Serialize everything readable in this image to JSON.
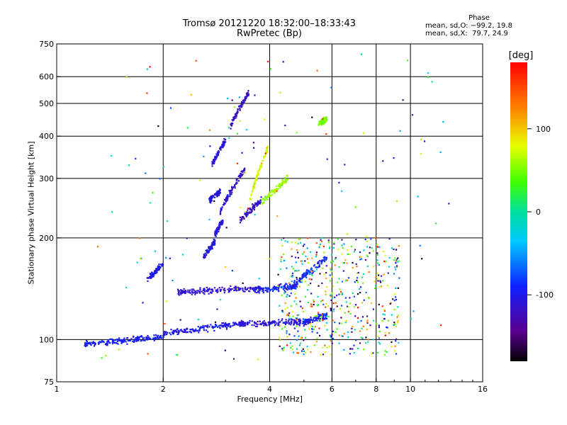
{
  "chart_data": {
    "type": "scatter",
    "title": "Tromsø 20121220 18:32:00–18:33:43",
    "subtitle": "RwPretec (Bp)",
    "xlabel": "Frequency [MHz]",
    "ylabel": "Stationary phase Virtual Height [km]",
    "x_scale": "log",
    "y_scale": "log",
    "xlim": [
      1,
      16
    ],
    "ylim": [
      75,
      750
    ],
    "x_ticks": [
      1,
      2,
      4,
      6,
      8,
      10,
      16
    ],
    "x_grid": [
      2,
      4,
      6,
      8,
      10
    ],
    "y_ticks": [
      75,
      100,
      200,
      300,
      400,
      500,
      600,
      750
    ],
    "y_grid": [
      100,
      200,
      300,
      400,
      500,
      600
    ],
    "grid": true,
    "colorbar": {
      "label": "[deg]",
      "ticks": [
        100,
        0,
        -100
      ],
      "range": [
        -180,
        180
      ]
    },
    "phase_stats": {
      "heading": "Phase",
      "line_o": "mean, sd,O: −99.2, 19.8",
      "line_x": "mean, sd,X:  79.7, 24.9"
    },
    "series": [
      {
        "traces": [
          {
            "f": [
              1.2,
              2.0
            ],
            "h": [
              97,
              102
            ],
            "ph": -105,
            "sd": 10
          },
          {
            "f": [
              2.0,
              3.4
            ],
            "h": [
              104,
              112
            ],
            "ph": -110,
            "sd": 12
          },
          {
            "f": [
              3.2,
              5.2
            ],
            "h": [
              111,
              113
            ],
            "ph": -118,
            "sd": 16
          },
          {
            "f": [
              5.0,
              5.8
            ],
            "h": [
              113,
              118
            ],
            "ph": -105,
            "sd": 18
          },
          {
            "f": [
              2.2,
              3.8
            ],
            "h": [
              138,
              142
            ],
            "ph": -120,
            "sd": 12
          },
          {
            "f": [
              3.6,
              4.8
            ],
            "h": [
              140,
              144
            ],
            "ph": -100,
            "sd": 20
          },
          {
            "f": [
              4.6,
              5.8
            ],
            "h": [
              143,
              175
            ],
            "ph": -95,
            "sd": 22
          },
          {
            "f": [
              1.8,
              2.0
            ],
            "h": [
              150,
              167
            ],
            "ph": -110,
            "sd": 8
          },
          {
            "f": [
              2.6,
              2.8
            ],
            "h": [
              175,
              195
            ],
            "ph": -115,
            "sd": 10
          },
          {
            "f": [
              2.8,
              2.95
            ],
            "h": [
              205,
              225
            ],
            "ph": -115,
            "sd": 10
          },
          {
            "f": [
              2.7,
              2.9
            ],
            "h": [
              258,
              275
            ],
            "ph": -115,
            "sd": 12
          },
          {
            "f": [
              2.75,
              3.0
            ],
            "h": [
              330,
              390
            ],
            "ph": -118,
            "sd": 12
          },
          {
            "f": [
              2.9,
              3.4
            ],
            "h": [
              240,
              320
            ],
            "ph": -122,
            "sd": 16
          },
          {
            "f": [
              3.3,
              3.8
            ],
            "h": [
              225,
              260
            ],
            "ph": -125,
            "sd": 12
          },
          {
            "f": [
              3.1,
              3.5
            ],
            "h": [
              430,
              540
            ],
            "ph": -125,
            "sd": 12
          },
          {
            "f": [
              3.5,
              3.95
            ],
            "h": [
              255,
              370
            ],
            "ph": 95,
            "sd": 22
          },
          {
            "f": [
              3.8,
              4.5
            ],
            "h": [
              255,
              300
            ],
            "ph": 70,
            "sd": 18
          },
          {
            "f": [
              5.5,
              5.8
            ],
            "h": [
              435,
              450
            ],
            "ph": 60,
            "sd": 15
          }
        ],
        "scatter": {
          "f": [
            4.2,
            9.3
          ],
          "h": [
            90,
            200
          ]
        },
        "sparse": {
          "f": [
            1.3,
            13.0
          ],
          "h": [
            85,
            700
          ]
        }
      }
    ]
  }
}
